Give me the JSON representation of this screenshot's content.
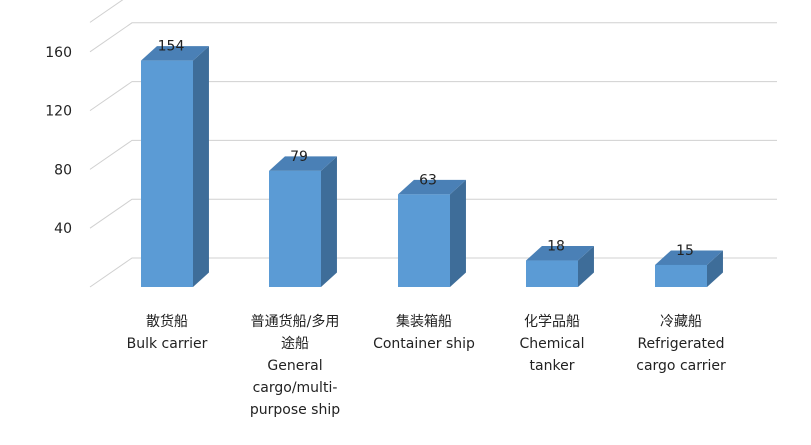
{
  "chart_data": {
    "type": "bar",
    "style": "3d-column",
    "categories": [
      [
        "散货船",
        "Bulk carrier"
      ],
      [
        "普通货船/多用",
        "途船",
        "General",
        "cargo/multi-",
        "purpose ship"
      ],
      [
        "集装箱船",
        "Container ship"
      ],
      [
        "化学品船",
        "Chemical",
        "tanker"
      ],
      [
        "冷藏船",
        "Refrigerated",
        "cargo carrier"
      ]
    ],
    "values": [
      154,
      79,
      63,
      18,
      15
    ],
    "data_labels": [
      "154",
      "79",
      "63",
      "18",
      "15"
    ],
    "y_ticks": [
      "40",
      "80",
      "120",
      "160"
    ],
    "ylim": [
      0,
      180
    ],
    "grid": true,
    "legend": "none",
    "colors": {
      "bar_front": "#5b9bd5",
      "bar_side": "#3e6d99",
      "bar_top": "#4a80b6",
      "grid": "#d0d0d0"
    }
  }
}
